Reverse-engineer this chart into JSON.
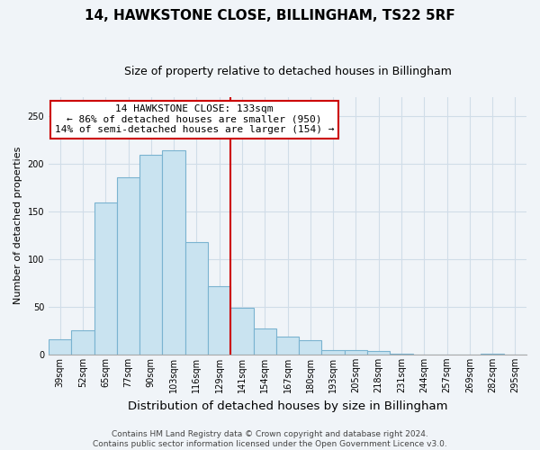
{
  "title": "14, HAWKSTONE CLOSE, BILLINGHAM, TS22 5RF",
  "subtitle": "Size of property relative to detached houses in Billingham",
  "xlabel": "Distribution of detached houses by size in Billingham",
  "ylabel": "Number of detached properties",
  "bin_labels": [
    "39sqm",
    "52sqm",
    "65sqm",
    "77sqm",
    "90sqm",
    "103sqm",
    "116sqm",
    "129sqm",
    "141sqm",
    "154sqm",
    "167sqm",
    "180sqm",
    "193sqm",
    "205sqm",
    "218sqm",
    "231sqm",
    "244sqm",
    "257sqm",
    "269sqm",
    "282sqm",
    "295sqm"
  ],
  "bar_heights": [
    16,
    25,
    159,
    186,
    209,
    214,
    118,
    72,
    49,
    27,
    19,
    15,
    5,
    5,
    4,
    1,
    0,
    0,
    0,
    1,
    0
  ],
  "bar_color": "#c9e3f0",
  "bar_edge_color": "#7ab3d0",
  "grid_color": "#d0dde8",
  "vline_color": "#cc0000",
  "annotation_text": "14 HAWKSTONE CLOSE: 133sqm\n← 86% of detached houses are smaller (950)\n14% of semi-detached houses are larger (154) →",
  "annotation_box_edgecolor": "#cc0000",
  "footer_line1": "Contains HM Land Registry data © Crown copyright and database right 2024.",
  "footer_line2": "Contains public sector information licensed under the Open Government Licence v3.0.",
  "ylim": [
    0,
    270
  ],
  "title_fontsize": 11,
  "subtitle_fontsize": 9,
  "xlabel_fontsize": 9.5,
  "ylabel_fontsize": 8,
  "tick_fontsize": 7,
  "annotation_fontsize": 8,
  "footer_fontsize": 6.5,
  "background_color": "#f0f4f8"
}
